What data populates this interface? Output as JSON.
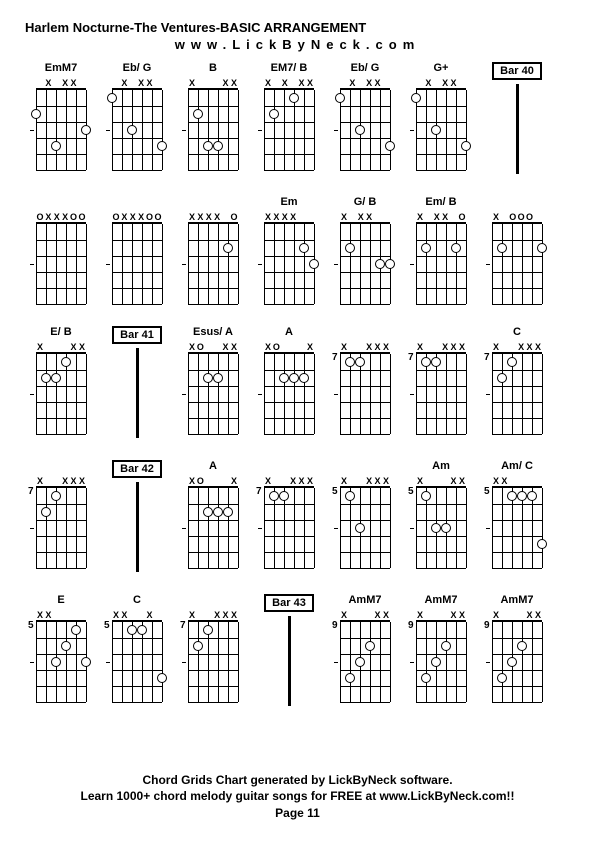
{
  "title": "Harlem Nocturne-The Ventures-BASIC ARRANGEMENT",
  "subtitle": "www.LickByNeck.com",
  "footer_line1": "Chord Grids Chart generated by LickByNeck software.",
  "footer_line2": "Learn 1000+ chord melody guitar songs for FREE at www.LickByNeck.com!!",
  "footer_page": "Page 11",
  "grid": {
    "strings": 6,
    "frets": 5,
    "width": 50,
    "height": 80
  },
  "rows": [
    [
      {
        "type": "chord",
        "name": "EmM7",
        "fret": "",
        "mutes": [
          "",
          "X",
          "",
          "X",
          "X",
          ""
        ],
        "dots": [
          [
            1,
            2
          ],
          [
            3,
            4
          ],
          [
            6,
            3
          ]
        ]
      },
      {
        "type": "chord",
        "name": "Eb/ G",
        "fret": "",
        "mutes": [
          "",
          "X",
          "",
          "X",
          "X",
          ""
        ],
        "dots": [
          [
            1,
            1
          ],
          [
            3,
            3
          ],
          [
            6,
            4
          ]
        ]
      },
      {
        "type": "chord",
        "name": "B",
        "fret": "",
        "mutes": [
          "X",
          "",
          "",
          "",
          "X",
          "X"
        ],
        "dots": [
          [
            2,
            2
          ],
          [
            3,
            4
          ],
          [
            4,
            4
          ]
        ]
      },
      {
        "type": "chord",
        "name": "EM7/ B",
        "fret": "",
        "mutes": [
          "X",
          "",
          "X",
          "",
          "X",
          "X"
        ],
        "dots": [
          [
            2,
            2
          ],
          [
            4,
            1
          ]
        ]
      },
      {
        "type": "chord",
        "name": "Eb/ G",
        "fret": "",
        "mutes": [
          "",
          "X",
          "",
          "X",
          "X",
          ""
        ],
        "dots": [
          [
            1,
            1
          ],
          [
            3,
            3
          ],
          [
            6,
            4
          ]
        ]
      },
      {
        "type": "chord",
        "name": "G+",
        "fret": "",
        "mutes": [
          "",
          "X",
          "",
          "X",
          "X",
          ""
        ],
        "dots": [
          [
            1,
            1
          ],
          [
            3,
            3
          ],
          [
            6,
            4
          ]
        ]
      },
      {
        "type": "bar",
        "label": "Bar 40"
      }
    ],
    [
      {
        "type": "chord",
        "name": "",
        "fret": "",
        "mutes": [
          "O",
          "X",
          "X",
          "X",
          "O",
          "O"
        ],
        "dots": []
      },
      {
        "type": "chord",
        "name": "",
        "fret": "",
        "mutes": [
          "O",
          "X",
          "X",
          "X",
          "O",
          "O"
        ],
        "dots": []
      },
      {
        "type": "chord",
        "name": "",
        "fret": "",
        "mutes": [
          "X",
          "X",
          "X",
          "X",
          "",
          "O"
        ],
        "dots": [
          [
            5,
            2
          ]
        ]
      },
      {
        "type": "chord",
        "name": "Em",
        "fret": "",
        "mutes": [
          "X",
          "X",
          "X",
          "X",
          "",
          ""
        ],
        "dots": [
          [
            5,
            2
          ],
          [
            6,
            3
          ]
        ]
      },
      {
        "type": "chord",
        "name": "G/ B",
        "fret": "",
        "mutes": [
          "X",
          "",
          "X",
          "X",
          "",
          ""
        ],
        "dots": [
          [
            2,
            2
          ],
          [
            5,
            3
          ],
          [
            6,
            3
          ]
        ]
      },
      {
        "type": "chord",
        "name": "Em/ B",
        "fret": "",
        "mutes": [
          "X",
          "",
          "X",
          "X",
          "",
          "O"
        ],
        "dots": [
          [
            2,
            2
          ],
          [
            5,
            2
          ]
        ]
      },
      {
        "type": "chord",
        "name": "",
        "fret": "",
        "mutes": [
          "X",
          "",
          "O",
          "O",
          "O",
          ""
        ],
        "dots": [
          [
            2,
            2
          ],
          [
            6,
            2
          ]
        ]
      }
    ],
    [
      {
        "type": "chord",
        "name": "E/ B",
        "fret": "",
        "mutes": [
          "X",
          "",
          "",
          "",
          "X",
          "X"
        ],
        "dots": [
          [
            2,
            2
          ],
          [
            3,
            2
          ],
          [
            4,
            1
          ]
        ]
      },
      {
        "type": "bar",
        "label": "Bar 41"
      },
      {
        "type": "chord",
        "name": "Esus/ A",
        "fret": "",
        "mutes": [
          "X",
          "O",
          "",
          "",
          "X",
          "X"
        ],
        "dots": [
          [
            3,
            2
          ],
          [
            4,
            2
          ]
        ]
      },
      {
        "type": "chord",
        "name": "A",
        "fret": "",
        "mutes": [
          "X",
          "O",
          "",
          "",
          "",
          "X"
        ],
        "dots": [
          [
            3,
            2
          ],
          [
            4,
            2
          ],
          [
            5,
            2
          ]
        ]
      },
      {
        "type": "chord",
        "name": "",
        "fret": "7",
        "mutes": [
          "X",
          "",
          "",
          "X",
          "X",
          "X"
        ],
        "dots": [
          [
            2,
            1
          ],
          [
            3,
            1
          ]
        ]
      },
      {
        "type": "chord",
        "name": "",
        "fret": "7",
        "mutes": [
          "X",
          "",
          "",
          "X",
          "X",
          "X"
        ],
        "dots": [
          [
            2,
            1
          ],
          [
            3,
            1
          ]
        ]
      },
      {
        "type": "chord",
        "name": "C",
        "fret": "7",
        "mutes": [
          "X",
          "",
          "",
          "X",
          "X",
          "X"
        ],
        "dots": [
          [
            2,
            2
          ],
          [
            3,
            1
          ]
        ]
      }
    ],
    [
      {
        "type": "chord",
        "name": "",
        "fret": "7",
        "mutes": [
          "X",
          "",
          "",
          "X",
          "X",
          "X"
        ],
        "dots": [
          [
            2,
            2
          ],
          [
            3,
            1
          ]
        ]
      },
      {
        "type": "bar",
        "label": "Bar 42"
      },
      {
        "type": "chord",
        "name": "A",
        "fret": "",
        "mutes": [
          "X",
          "O",
          "",
          "",
          "",
          "X"
        ],
        "dots": [
          [
            3,
            2
          ],
          [
            4,
            2
          ],
          [
            5,
            2
          ]
        ]
      },
      {
        "type": "chord",
        "name": "",
        "fret": "7",
        "mutes": [
          "X",
          "",
          "",
          "X",
          "X",
          "X"
        ],
        "dots": [
          [
            2,
            1
          ],
          [
            3,
            1
          ]
        ]
      },
      {
        "type": "chord",
        "name": "",
        "fret": "5",
        "mutes": [
          "X",
          "",
          "",
          "X",
          "X",
          "X"
        ],
        "dots": [
          [
            2,
            1
          ],
          [
            3,
            3
          ]
        ]
      },
      {
        "type": "chord",
        "name": "Am",
        "fret": "5",
        "mutes": [
          "X",
          "",
          "",
          "",
          "X",
          "X"
        ],
        "dots": [
          [
            2,
            1
          ],
          [
            3,
            3
          ],
          [
            4,
            3
          ]
        ]
      },
      {
        "type": "chord",
        "name": "Am/ C",
        "fret": "5",
        "mutes": [
          "X",
          "X",
          "",
          "",
          "",
          ""
        ],
        "dots": [
          [
            3,
            1
          ],
          [
            4,
            1
          ],
          [
            5,
            1
          ],
          [
            6,
            4
          ]
        ]
      }
    ],
    [
      {
        "type": "chord",
        "name": "E",
        "fret": "5",
        "mutes": [
          "X",
          "X",
          "",
          "",
          "",
          ""
        ],
        "dots": [
          [
            3,
            3
          ],
          [
            4,
            2
          ],
          [
            5,
            1
          ],
          [
            6,
            3
          ]
        ]
      },
      {
        "type": "chord",
        "name": "C",
        "fret": "5",
        "mutes": [
          "X",
          "X",
          "",
          "",
          "X",
          ""
        ],
        "dots": [
          [
            3,
            1
          ],
          [
            4,
            1
          ],
          [
            6,
            4
          ]
        ]
      },
      {
        "type": "chord",
        "name": "",
        "fret": "7",
        "mutes": [
          "X",
          "",
          "",
          "X",
          "X",
          "X"
        ],
        "dots": [
          [
            2,
            2
          ],
          [
            3,
            1
          ]
        ]
      },
      {
        "type": "bar",
        "label": "Bar 43"
      },
      {
        "type": "chord",
        "name": "AmM7",
        "fret": "9",
        "mutes": [
          "X",
          "",
          "",
          "",
          "X",
          "X"
        ],
        "dots": [
          [
            2,
            4
          ],
          [
            3,
            3
          ],
          [
            4,
            2
          ]
        ]
      },
      {
        "type": "chord",
        "name": "AmM7",
        "fret": "9",
        "mutes": [
          "X",
          "",
          "",
          "",
          "X",
          "X"
        ],
        "dots": [
          [
            2,
            4
          ],
          [
            3,
            3
          ],
          [
            4,
            2
          ]
        ]
      },
      {
        "type": "chord",
        "name": "AmM7",
        "fret": "9",
        "mutes": [
          "X",
          "",
          "",
          "",
          "X",
          "X"
        ],
        "dots": [
          [
            2,
            4
          ],
          [
            3,
            3
          ],
          [
            4,
            2
          ]
        ]
      }
    ]
  ]
}
